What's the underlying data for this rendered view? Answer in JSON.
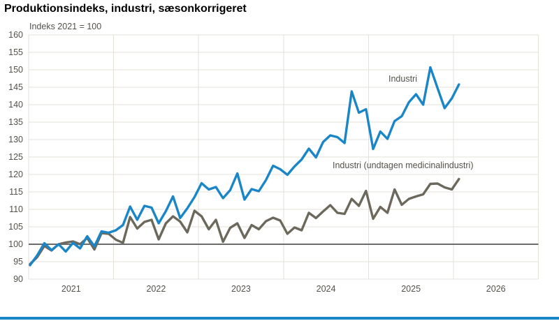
{
  "title": "Produktionsindeks, industri, sæsonkorrigeret",
  "subtitle": "Indeks 2021 = 100",
  "accent_color": "#1a86c8",
  "chart_data": {
    "type": "line",
    "title": "Produktionsindeks, industri, sæsonkorrigeret",
    "unit_label": "Indeks 2021 = 100",
    "ylim": [
      90,
      160
    ],
    "yticks": [
      160,
      155,
      150,
      145,
      140,
      135,
      130,
      125,
      120,
      115,
      110,
      105,
      100,
      95,
      90
    ],
    "year_labels": [
      "2021",
      "2022",
      "2023",
      "2024",
      "2025",
      "2026"
    ],
    "x_start_month": "2021-01",
    "x_end_month": "2026-01",
    "grid": true,
    "reference_line": 100,
    "reference_line_color": "#6b6b6b",
    "grid_color": "#e3e1d8",
    "series": [
      {
        "name": "Industri (undtagen medicinalindustri)",
        "color": "#6c695c",
        "values": [
          94.3,
          96.3,
          99.5,
          98.2,
          100.0,
          100.5,
          100.8,
          100.0,
          101.8,
          98.5,
          103.2,
          103.0,
          101.3,
          100.4,
          107.8,
          104.5,
          106.4,
          107.0,
          101.4,
          106.0,
          108.0,
          106.5,
          103.4,
          109.6,
          108.0,
          104.3,
          107.0,
          100.7,
          104.7,
          106.0,
          101.8,
          105.5,
          104.3,
          106.6,
          107.6,
          106.8,
          103.0,
          104.8,
          104.0,
          109.0,
          107.5,
          109.4,
          111.2,
          109.0,
          108.7,
          113.0,
          111.0,
          115.3,
          107.3,
          110.7,
          109.0,
          115.7,
          111.3,
          113.0,
          113.7,
          114.3,
          117.3,
          117.4,
          116.3,
          115.7,
          118.7
        ]
      },
      {
        "name": "Industri",
        "color": "#1a86c8",
        "values": [
          94.0,
          96.8,
          100.3,
          98.3,
          100.0,
          97.9,
          100.4,
          98.8,
          102.3,
          99.4,
          103.7,
          103.3,
          104.0,
          105.5,
          110.8,
          107.0,
          111.0,
          110.5,
          106.0,
          109.5,
          113.7,
          107.5,
          110.3,
          113.5,
          117.5,
          115.7,
          116.4,
          113.2,
          115.5,
          120.3,
          112.8,
          115.8,
          115.2,
          118.4,
          122.5,
          121.5,
          119.9,
          122.3,
          124.3,
          127.4,
          124.9,
          129.3,
          131.2,
          130.7,
          129.0,
          143.8,
          137.7,
          138.7,
          127.3,
          132.3,
          130.2,
          135.3,
          136.7,
          140.7,
          143.0,
          140.0,
          150.7,
          144.8,
          139.0,
          141.8,
          145.8
        ]
      }
    ],
    "annotations": [
      {
        "text": "Industri"
      },
      {
        "text": "Industri (undtagen medicinalindustri)"
      }
    ],
    "legend_position": "inline-labels"
  }
}
